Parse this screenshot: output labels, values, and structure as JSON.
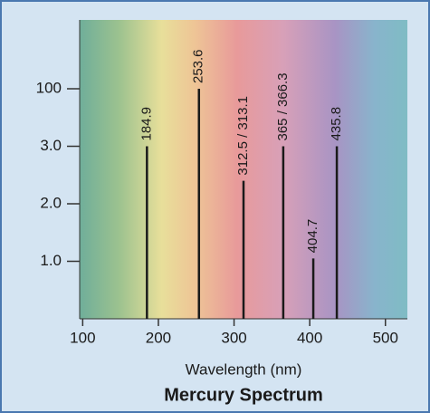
{
  "chart_data": {
    "type": "spectrum",
    "title": "Mercury Spectrum",
    "x_label": "Wavelength (nm)",
    "x": [
      184.9,
      253.6,
      312.5,
      365,
      404.7,
      435.8
    ],
    "labels": [
      "184.9",
      "253.6",
      "312.5 / 313.1",
      "365 / 366.3",
      "404.7",
      "435.8"
    ],
    "values": [
      3.0,
      100,
      2.4,
      3.0,
      1.05,
      3.05
    ],
    "color": "#1a1a1a",
    "xlim": [
      96,
      529
    ],
    "xticks": [
      100,
      200,
      300,
      400,
      500
    ],
    "ylim": [
      0,
      100
    ],
    "yticks": [
      {
        "value": 1,
        "label": "1.0"
      },
      {
        "value": 2,
        "label": "2.0"
      },
      {
        "value": 3,
        "label": "3.0"
      },
      100
    ]
  }
}
